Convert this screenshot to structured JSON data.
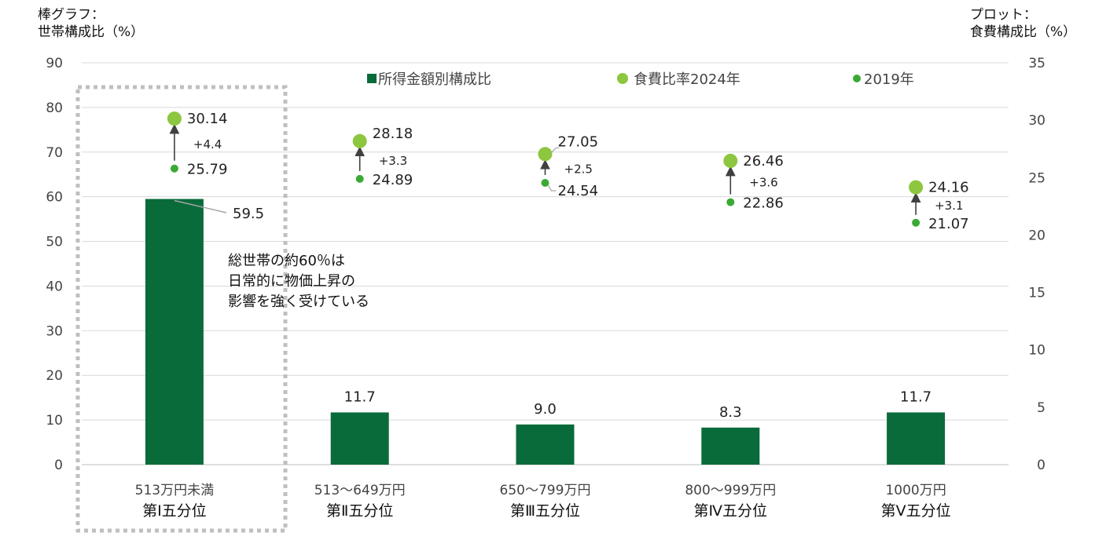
{
  "chart_data": {
    "type": "bar",
    "left_axis_title": [
      "棒グラフ：",
      "世帯構成比（%）"
    ],
    "right_axis_title": [
      "プロット：",
      "食費構成比（%）"
    ],
    "left_ticks": [
      "0",
      "10",
      "20",
      "30",
      "40",
      "50",
      "60",
      "70",
      "80",
      "90"
    ],
    "right_ticks": [
      "0",
      "5",
      "10",
      "15",
      "20",
      "25",
      "30",
      "35"
    ],
    "ylim_left": [
      0,
      90
    ],
    "ylim_right": [
      0,
      35
    ],
    "grid": true,
    "legend_position": "top",
    "categories": [
      {
        "line1": "513万円未満",
        "line2": "第Ⅰ五分位"
      },
      {
        "line1": "513〜649万円",
        "line2": "第Ⅱ五分位"
      },
      {
        "line1": "650〜799万円",
        "line2": "第Ⅲ五分位"
      },
      {
        "line1": "800〜999万円",
        "line2": "第Ⅳ五分位"
      },
      {
        "line1": "1000万円",
        "line2": "第Ⅴ五分位"
      }
    ],
    "series": [
      {
        "name": "所得金額別構成比",
        "axis": "left",
        "kind": "bar",
        "values": [
          59.5,
          11.7,
          9.0,
          8.3,
          11.7
        ],
        "labels": [
          "59.5",
          "11.7",
          "9.0",
          "8.3",
          "11.7"
        ]
      },
      {
        "name": "食費比率2024年",
        "axis": "right",
        "kind": "point",
        "values": [
          30.14,
          28.18,
          27.05,
          26.46,
          24.16
        ],
        "labels": [
          "30.14",
          "28.18",
          "27.05",
          "26.46",
          "24.16"
        ]
      },
      {
        "name": "2019年",
        "axis": "right",
        "kind": "point",
        "values": [
          25.79,
          24.89,
          24.54,
          22.86,
          21.07
        ],
        "labels": [
          "25.79",
          "24.89",
          "24.54",
          "22.86",
          "21.07"
        ]
      }
    ],
    "differences": [
      "+4.4",
      "+3.3",
      "+2.5",
      "+3.6",
      "+3.1"
    ],
    "annotation": [
      "総世帯の約60％は",
      "日常的に物価上昇の",
      "影響を強く受けている"
    ],
    "colors": {
      "bar": "#0a6b3a",
      "point2024": "#8dc63f",
      "point2019": "#3aaa35",
      "grid": "#d9d9d9",
      "arrow": "#404040",
      "highlight_box": "#bfbfbf"
    }
  }
}
